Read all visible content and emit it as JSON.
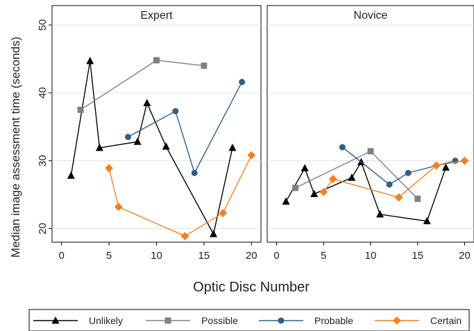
{
  "chart_data": {
    "type": "line",
    "ylabel": "Median image assessment time (seconds)",
    "xlabel": "Optic Disc Number",
    "xlim": [
      -1,
      21
    ],
    "ylim": [
      18,
      50
    ],
    "xticks": [
      0,
      5,
      10,
      15,
      20
    ],
    "yticks": [
      20,
      30,
      40,
      50
    ],
    "grid": "horizontal",
    "legend_position": "bottom",
    "legend": [
      {
        "name": "Unlikely",
        "color": "#000000",
        "marker": "triangle"
      },
      {
        "name": "Possible",
        "color": "#808080",
        "marker": "square"
      },
      {
        "name": "Probable",
        "color": "#2E5F8A",
        "marker": "circle"
      },
      {
        "name": "Certain",
        "color": "#F08125",
        "marker": "diamond"
      }
    ],
    "panels": [
      {
        "title": "Expert",
        "series": [
          {
            "name": "Unlikely",
            "x": [
              1,
              3,
              4,
              8,
              9,
              11,
              16,
              18
            ],
            "y": [
              27.8,
              44.7,
              31.9,
              32.8,
              38.5,
              32.1,
              19.2,
              31.9
            ]
          },
          {
            "name": "Possible",
            "x": [
              2,
              10,
              15
            ],
            "y": [
              37.5,
              44.8,
              44.0
            ]
          },
          {
            "name": "Probable",
            "x": [
              7,
              12,
              14,
              19
            ],
            "y": [
              33.5,
              37.3,
              28.2,
              41.6
            ]
          },
          {
            "name": "Certain",
            "x": [
              5,
              6,
              13,
              17,
              20
            ],
            "y": [
              28.9,
              23.2,
              18.9,
              22.3,
              30.8
            ]
          }
        ]
      },
      {
        "title": "Novice",
        "series": [
          {
            "name": "Unlikely",
            "x": [
              1,
              3,
              4,
              8,
              9,
              11,
              16,
              18
            ],
            "y": [
              24.0,
              28.9,
              25.1,
              27.5,
              29.8,
              22.1,
              21.1,
              29.0
            ]
          },
          {
            "name": "Possible",
            "x": [
              2,
              10,
              15
            ],
            "y": [
              26.0,
              31.4,
              24.4
            ]
          },
          {
            "name": "Probable",
            "x": [
              7,
              12,
              14,
              19
            ],
            "y": [
              32.0,
              26.5,
              28.2,
              30.0
            ]
          },
          {
            "name": "Certain",
            "x": [
              5,
              6,
              13,
              17,
              20
            ],
            "y": [
              25.4,
              27.3,
              24.6,
              29.3,
              30.0
            ]
          }
        ]
      }
    ]
  }
}
